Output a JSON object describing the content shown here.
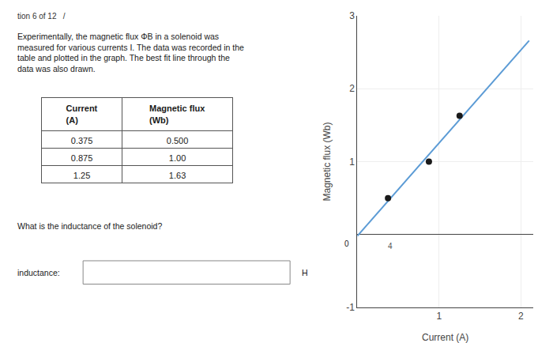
{
  "chart_data": {
    "type": "scatter",
    "xlabel": "Current (A)",
    "ylabel": "Magnetic flux (Wb)",
    "xlim": [
      0,
      2.15
    ],
    "ylim": [
      -1,
      3
    ],
    "xticks": [
      1,
      2
    ],
    "yticks": [
      -1,
      1,
      2,
      3
    ],
    "grid": true,
    "series": [
      {
        "type": "line",
        "color": "#5b9bd5",
        "x": [
          0.0,
          2.1
        ],
        "values": [
          -0.01972973,
          2.65918919
        ]
      },
      {
        "type": "scatter",
        "color": "#1a1a1a",
        "x": [
          0.375,
          0.875,
          1.25
        ],
        "values": [
          0.5,
          1.0,
          1.63
        ]
      }
    ],
    "annotations": [
      {
        "text": "0",
        "x": -0.13,
        "y": -0.13
      },
      {
        "text": "4",
        "x": 0.4,
        "y": -0.16,
        "color": "#555555"
      }
    ],
    "side_text": {
      "header": "tion 6 of 12   /",
      "description": "Experimentally, the magnetic flux ΦB in a solenoid was\nmeasured for various currents I. The data was recorded in the\ntable and plotted in the graph. The best fit line through the\ndata was also drawn.",
      "question": "What is the inductance of the solenoid?",
      "input_label": "inductance:",
      "unit": "H"
    },
    "table": {
      "headers": [
        "Current\n(A)",
        "Magnetic flux\n(Wb)"
      ],
      "rows": [
        [
          "0.375",
          "0.500"
        ],
        [
          "0.875",
          "1.00"
        ],
        [
          "1.25",
          "1.63"
        ]
      ]
    }
  }
}
